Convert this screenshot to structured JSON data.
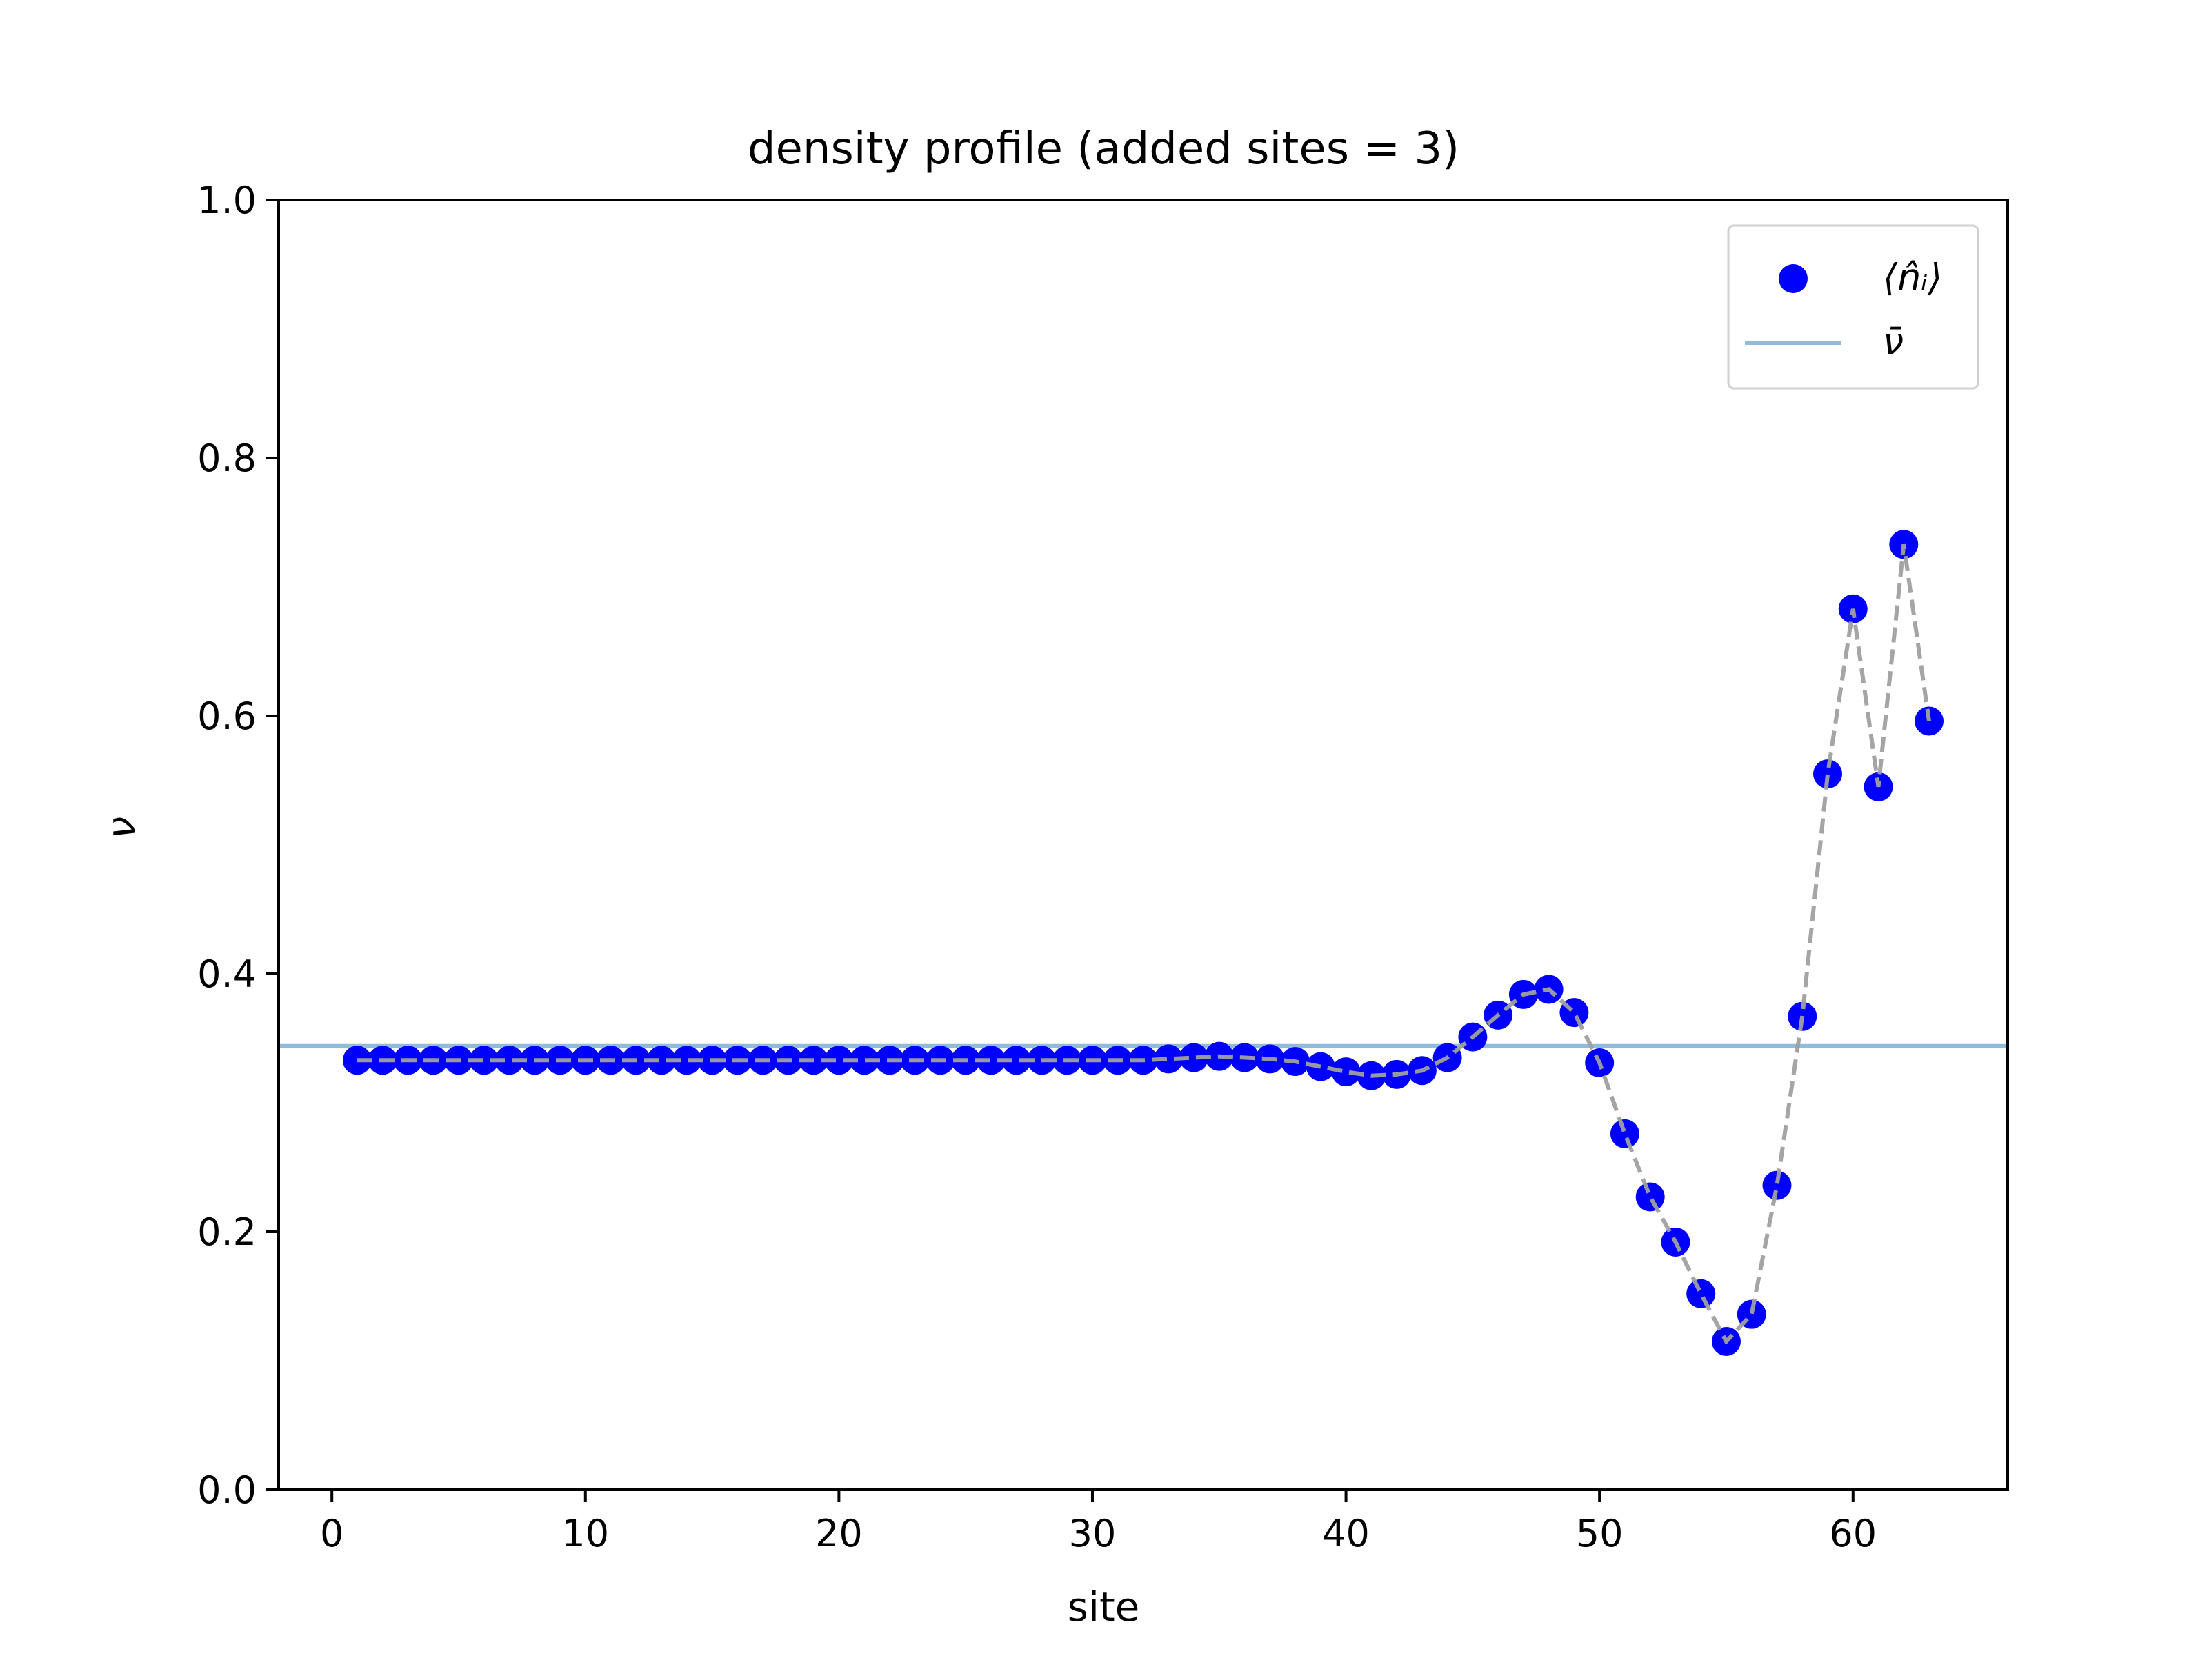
{
  "chart_data": {
    "type": "scatter",
    "title": "density profile (added sites = 3)",
    "xlabel": "site",
    "ylabel": "ν",
    "xlim": [
      -2.1,
      66.1
    ],
    "ylim": [
      0.0,
      1.0
    ],
    "x_ticks": [
      0,
      10,
      20,
      30,
      40,
      50,
      60
    ],
    "y_ticks": [
      0.0,
      0.2,
      0.4,
      0.6,
      0.8,
      1.0
    ],
    "x_tick_labels": [
      "0",
      "10",
      "20",
      "30",
      "40",
      "50",
      "60"
    ],
    "y_tick_labels": [
      "0.0",
      "0.2",
      "0.4",
      "0.6",
      "0.8",
      "1.0"
    ],
    "grid": false,
    "legend_position": "top-right",
    "series": [
      {
        "name": "⟨n̂ᵢ⟩",
        "kind": "scatter",
        "color": "#0000ff",
        "x": [
          1,
          2,
          3,
          4,
          5,
          6,
          7,
          8,
          9,
          10,
          11,
          12,
          13,
          14,
          15,
          16,
          17,
          18,
          19,
          20,
          21,
          22,
          23,
          24,
          25,
          26,
          27,
          28,
          29,
          30,
          31,
          32,
          33,
          34,
          35,
          36,
          37,
          38,
          39,
          40,
          41,
          42,
          43,
          44,
          45,
          46,
          47,
          48,
          49,
          50,
          51,
          52,
          53,
          54,
          55,
          56,
          57,
          58,
          59,
          60,
          61,
          62,
          63
        ],
        "y": [
          0.333,
          0.333,
          0.333,
          0.333,
          0.333,
          0.333,
          0.333,
          0.333,
          0.333,
          0.333,
          0.333,
          0.333,
          0.333,
          0.333,
          0.333,
          0.333,
          0.333,
          0.333,
          0.333,
          0.333,
          0.333,
          0.333,
          0.333,
          0.333,
          0.333,
          0.333,
          0.333,
          0.333,
          0.333,
          0.333,
          0.333,
          0.333,
          0.334,
          0.335,
          0.336,
          0.335,
          0.334,
          0.332,
          0.328,
          0.324,
          0.321,
          0.322,
          0.325,
          0.335,
          0.351,
          0.368,
          0.384,
          0.388,
          0.37,
          0.331,
          0.276,
          0.227,
          0.192,
          0.152,
          0.115,
          0.136,
          0.236,
          0.367,
          0.555,
          0.683,
          0.545,
          0.733,
          0.596
        ]
      },
      {
        "name": "",
        "kind": "line",
        "style": "dashed",
        "color": "#a0a0a0",
        "x": [
          1,
          2,
          3,
          4,
          5,
          6,
          7,
          8,
          9,
          10,
          11,
          12,
          13,
          14,
          15,
          16,
          17,
          18,
          19,
          20,
          21,
          22,
          23,
          24,
          25,
          26,
          27,
          28,
          29,
          30,
          31,
          32,
          33,
          34,
          35,
          36,
          37,
          38,
          39,
          40,
          41,
          42,
          43,
          44,
          45,
          46,
          47,
          48,
          49,
          50,
          51,
          52,
          53,
          54,
          55,
          56,
          57,
          58,
          59,
          60,
          61,
          62,
          63
        ],
        "y": [
          0.333,
          0.333,
          0.333,
          0.333,
          0.333,
          0.333,
          0.333,
          0.333,
          0.333,
          0.333,
          0.333,
          0.333,
          0.333,
          0.333,
          0.333,
          0.333,
          0.333,
          0.333,
          0.333,
          0.333,
          0.333,
          0.333,
          0.333,
          0.333,
          0.333,
          0.333,
          0.333,
          0.333,
          0.333,
          0.333,
          0.333,
          0.333,
          0.334,
          0.335,
          0.336,
          0.335,
          0.334,
          0.332,
          0.328,
          0.324,
          0.321,
          0.322,
          0.325,
          0.335,
          0.351,
          0.368,
          0.384,
          0.388,
          0.37,
          0.331,
          0.276,
          0.227,
          0.192,
          0.152,
          0.115,
          0.136,
          0.236,
          0.367,
          0.555,
          0.683,
          0.545,
          0.733,
          0.596
        ]
      },
      {
        "name": "ν̄",
        "kind": "hline",
        "color": "#8fbcdb",
        "y": 0.344
      }
    ]
  }
}
